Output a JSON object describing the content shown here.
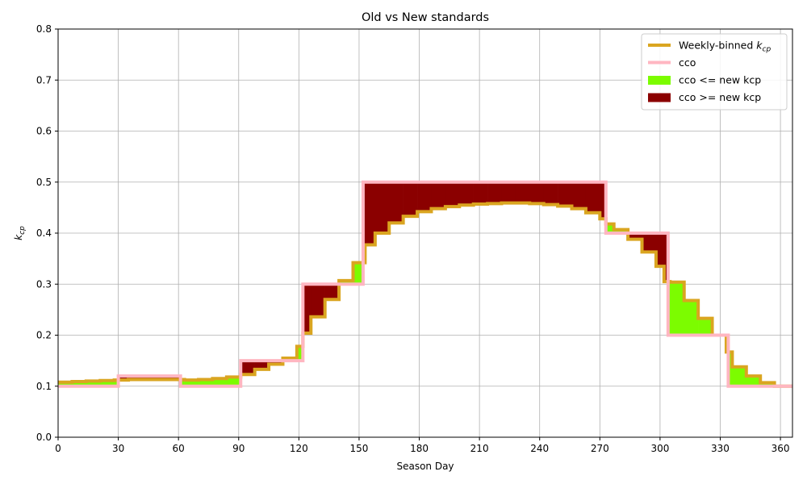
{
  "chart_data": {
    "type": "line",
    "title": "Old vs New standards",
    "xlabel": "Season Day",
    "ylabel": "k_cp",
    "xlim": [
      0,
      366
    ],
    "ylim": [
      0,
      0.8
    ],
    "xticks": [
      0,
      30,
      60,
      90,
      120,
      150,
      180,
      210,
      240,
      270,
      300,
      330,
      360
    ],
    "yticks": [
      0.0,
      0.1,
      0.2,
      0.3,
      0.4,
      0.5,
      0.6,
      0.7,
      0.8
    ],
    "grid": true,
    "legend_position": "top-right",
    "colors": {
      "weekly": "#DAA520",
      "cco": "#FFB6C1",
      "fill_le": "#7CFC00",
      "fill_ge": "#8B0000",
      "grid": "#b0b0b0"
    },
    "legend": [
      {
        "key": "weekly",
        "label": "Weekly-binned ",
        "math": "k",
        "sub": "cp",
        "style": "line"
      },
      {
        "key": "cco",
        "label": "cco",
        "style": "line"
      },
      {
        "key": "fill_le",
        "label": "cco <= new kcp",
        "style": "patch"
      },
      {
        "key": "fill_ge",
        "label": "cco >= new kcp",
        "style": "patch"
      }
    ],
    "series": [
      {
        "name": "Weekly-binned k_cp",
        "step": true,
        "x": [
          0,
          7,
          14,
          21,
          28,
          35,
          42,
          49,
          56,
          63,
          70,
          77,
          84,
          91,
          98,
          105,
          112,
          119,
          122,
          126,
          133,
          140,
          147,
          153,
          158,
          165,
          172,
          179,
          186,
          193,
          200,
          207,
          214,
          221,
          228,
          235,
          242,
          249,
          256,
          263,
          270,
          273,
          277,
          284,
          291,
          298,
          302,
          305,
          312,
          319,
          326,
          333,
          336,
          343,
          350,
          357,
          366
        ],
        "y": [
          0.108,
          0.109,
          0.11,
          0.111,
          0.112,
          0.113,
          0.113,
          0.113,
          0.113,
          0.112,
          0.113,
          0.115,
          0.118,
          0.123,
          0.133,
          0.143,
          0.155,
          0.178,
          0.204,
          0.236,
          0.27,
          0.307,
          0.342,
          0.377,
          0.4,
          0.42,
          0.433,
          0.442,
          0.448,
          0.452,
          0.455,
          0.457,
          0.458,
          0.459,
          0.459,
          0.458,
          0.456,
          0.453,
          0.448,
          0.44,
          0.428,
          0.418,
          0.407,
          0.388,
          0.363,
          0.335,
          0.305,
          0.304,
          0.268,
          0.233,
          0.2,
          0.167,
          0.138,
          0.12,
          0.107,
          0.1,
          0.1
        ]
      },
      {
        "name": "cco",
        "step": true,
        "x": [
          0,
          30,
          61,
          91,
          122,
          152,
          273,
          304,
          334,
          366
        ],
        "y": [
          0.1,
          0.12,
          0.1,
          0.15,
          0.3,
          0.5,
          0.4,
          0.2,
          0.1,
          0.1
        ]
      }
    ]
  }
}
